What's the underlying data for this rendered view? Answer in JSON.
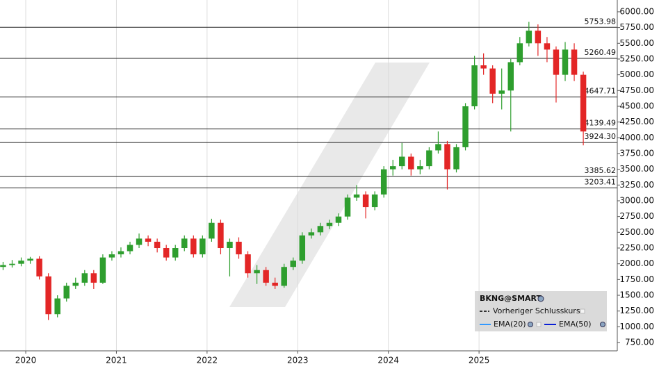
{
  "chart_data": {
    "type": "candlestick",
    "up_color": "#2e9e2e",
    "down_color": "#e32626",
    "xlim": [
      2019.716,
      2026.525
    ],
    "xticks": [
      2020,
      2021,
      2022,
      2023,
      2024,
      2025
    ],
    "ylim": [
      618,
      6187
    ],
    "yticks": [
      {
        "value": 6000,
        "label": "6000.00"
      },
      {
        "value": 5750,
        "label": "5750.00"
      },
      {
        "value": 5500,
        "label": "5500.00"
      },
      {
        "value": 5250,
        "label": "5250.00"
      },
      {
        "value": 5000,
        "label": "5000.00"
      },
      {
        "value": 4750,
        "label": "4750.00"
      },
      {
        "value": 4500,
        "label": "4500.00"
      },
      {
        "value": 4250,
        "label": "4250.00"
      },
      {
        "value": 4000,
        "label": "4000.00"
      },
      {
        "value": 3750,
        "label": "3750.00"
      },
      {
        "value": 3500,
        "label": "3500.00"
      },
      {
        "value": 3250,
        "label": "3250.00"
      },
      {
        "value": 3000,
        "label": "3000.00"
      },
      {
        "value": 2750,
        "label": "2750.00"
      },
      {
        "value": 2500,
        "label": "2500.00"
      },
      {
        "value": 2250,
        "label": "2250.00"
      },
      {
        "value": 2000,
        "label": "2000.00"
      },
      {
        "value": 1750,
        "label": "1750.00"
      },
      {
        "value": 1500,
        "label": "1500.00"
      },
      {
        "value": 1250,
        "label": "1250.00"
      },
      {
        "value": 1000,
        "label": "1000.00"
      },
      {
        "value": 750,
        "label": "750.00"
      }
    ],
    "levels": [
      5753.98,
      5260.49,
      4647.71,
      4139.49,
      {
        "value": 3924.3,
        "label": "3924.30"
      },
      3385.62,
      3203.41
    ],
    "legend": {
      "title": "BKNG@SMART",
      "items": [
        {
          "name": "Vorheriger Schlusskurs",
          "color": "#333333",
          "style": "dashed"
        },
        {
          "name": "EMA(20)",
          "color": "#3399ff",
          "style": "solid"
        },
        {
          "name": "EMA(50)",
          "color": "#0a1fd6",
          "style": "solid"
        }
      ]
    },
    "x": [
      2019.75,
      2019.85,
      2019.95,
      2020.05,
      2020.15,
      2020.25,
      2020.35,
      2020.45,
      2020.55,
      2020.65,
      2020.75,
      2020.85,
      2020.95,
      2021.05,
      2021.15,
      2021.25,
      2021.35,
      2021.45,
      2021.55,
      2021.65,
      2021.75,
      2021.85,
      2021.95,
      2022.05,
      2022.15,
      2022.25,
      2022.35,
      2022.45,
      2022.55,
      2022.65,
      2022.75,
      2022.85,
      2022.95,
      2023.05,
      2023.15,
      2023.25,
      2023.35,
      2023.45,
      2023.55,
      2023.65,
      2023.75,
      2023.85,
      2023.95,
      2024.05,
      2024.15,
      2024.25,
      2024.35,
      2024.45,
      2024.55,
      2024.65,
      2024.75,
      2024.85,
      2024.95,
      2025.05,
      2025.15,
      2025.25,
      2025.35,
      2025.45,
      2025.55,
      2025.65,
      2025.75,
      2025.85,
      2025.95,
      2026.05,
      2026.15
    ],
    "open": [
      1950,
      1980,
      2000,
      2050,
      2080,
      1800,
      1200,
      1450,
      1650,
      1700,
      1850,
      1700,
      2100,
      2150,
      2200,
      2300,
      2400,
      2350,
      2250,
      2100,
      2250,
      2400,
      2150,
      2400,
      2650,
      2250,
      2350,
      2150,
      1850,
      1900,
      1700,
      1650,
      1950,
      2050,
      2450,
      2500,
      2600,
      2650,
      2750,
      3050,
      3100,
      2900,
      3100,
      3500,
      3550,
      3700,
      3500,
      3550,
      3800,
      3900,
      3500,
      3850,
      4500,
      5150,
      5100,
      4700,
      4750,
      5200,
      5500,
      5700,
      5500,
      5400,
      5000,
      5400,
      5000
    ],
    "high": [
      2030,
      2060,
      2100,
      2110,
      2120,
      1850,
      1500,
      1700,
      1780,
      1900,
      1900,
      2150,
      2200,
      2260,
      2350,
      2480,
      2450,
      2400,
      2300,
      2300,
      2450,
      2450,
      2450,
      2715,
      2700,
      2400,
      2420,
      2200,
      1980,
      1950,
      1780,
      2000,
      2100,
      2500,
      2560,
      2650,
      2700,
      2800,
      3100,
      3250,
      3150,
      3150,
      3550,
      3650,
      3918,
      3750,
      3650,
      3850,
      4100,
      3950,
      3900,
      4550,
      5300,
      5340,
      5150,
      5100,
      5250,
      5600,
      5840,
      5800,
      5600,
      5450,
      5520,
      5500,
      5050
    ],
    "low": [
      1900,
      1940,
      1960,
      2000,
      1750,
      1107,
      1150,
      1400,
      1600,
      1650,
      1600,
      1680,
      2050,
      2100,
      2150,
      2250,
      2280,
      2180,
      2050,
      2050,
      2200,
      2100,
      2100,
      2350,
      2150,
      1800,
      2080,
      1780,
      1680,
      1650,
      1600,
      1620,
      1900,
      2000,
      2400,
      2450,
      2550,
      2600,
      2700,
      3000,
      2720,
      2850,
      3050,
      3400,
      3500,
      3400,
      3420,
      3500,
      3750,
      3180,
      3450,
      3800,
      4450,
      5000,
      4550,
      4450,
      4100,
      5150,
      5450,
      5300,
      5200,
      4560,
      4900,
      4900,
      3880
    ],
    "close": [
      1980,
      2000,
      2050,
      2080,
      1800,
      1200,
      1450,
      1650,
      1700,
      1850,
      1700,
      2100,
      2150,
      2200,
      2300,
      2400,
      2350,
      2250,
      2100,
      2250,
      2400,
      2150,
      2400,
      2650,
      2250,
      2350,
      2150,
      1850,
      1900,
      1700,
      1650,
      1950,
      2050,
      2450,
      2500,
      2600,
      2650,
      2750,
      3050,
      3100,
      2900,
      3100,
      3500,
      3550,
      3700,
      3500,
      3550,
      3800,
      3900,
      3500,
      3850,
      4500,
      5150,
      5100,
      4700,
      4750,
      5200,
      5500,
      5700,
      5500,
      5400,
      5000,
      5400,
      5000,
      4100
    ]
  }
}
